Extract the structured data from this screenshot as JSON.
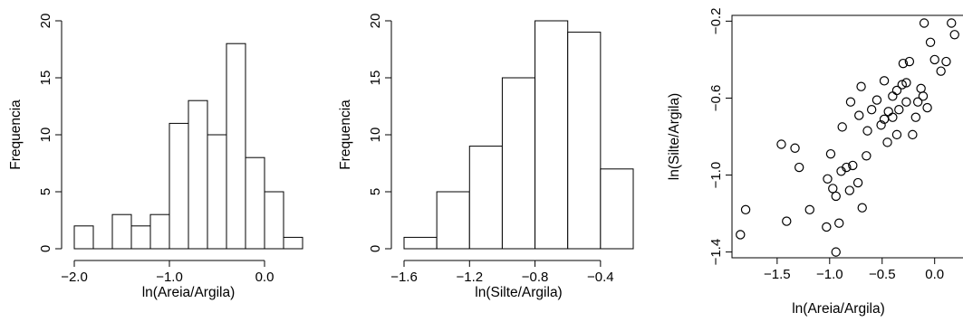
{
  "chart_data": [
    {
      "type": "histogram",
      "title": "",
      "xlabel": "ln(Areia/Argila)",
      "ylabel": "Frequencia",
      "xlim": [
        -2.0,
        0.4
      ],
      "ylim": [
        0,
        20
      ],
      "bin_width": 0.2,
      "bins": [
        {
          "x0": -2.0,
          "x1": -1.8,
          "count": 2
        },
        {
          "x0": -1.8,
          "x1": -1.6,
          "count": 0
        },
        {
          "x0": -1.6,
          "x1": -1.4,
          "count": 3
        },
        {
          "x0": -1.4,
          "x1": -1.2,
          "count": 2
        },
        {
          "x0": -1.2,
          "x1": -1.0,
          "count": 3
        },
        {
          "x0": -1.0,
          "x1": -0.8,
          "count": 11
        },
        {
          "x0": -0.8,
          "x1": -0.6,
          "count": 13
        },
        {
          "x0": -0.6,
          "x1": -0.4,
          "count": 10
        },
        {
          "x0": -0.4,
          "x1": -0.2,
          "count": 18
        },
        {
          "x0": -0.2,
          "x1": 0.0,
          "count": 8
        },
        {
          "x0": 0.0,
          "x1": 0.2,
          "count": 5
        },
        {
          "x0": 0.2,
          "x1": 0.4,
          "count": 1
        }
      ],
      "x_ticks": [
        {
          "value": -2.0,
          "label": "−2.0"
        },
        {
          "value": -1.0,
          "label": "−1.0"
        },
        {
          "value": 0.0,
          "label": "0.0"
        }
      ],
      "y_ticks": [
        {
          "value": 0,
          "label": "0"
        },
        {
          "value": 5,
          "label": "5"
        },
        {
          "value": 10,
          "label": "10"
        },
        {
          "value": 15,
          "label": "15"
        },
        {
          "value": 20,
          "label": "20"
        }
      ]
    },
    {
      "type": "histogram",
      "title": "",
      "xlabel": "ln(Silte/Argila)",
      "ylabel": "Frequencia",
      "xlim": [
        -1.6,
        -0.2
      ],
      "ylim": [
        0,
        20
      ],
      "bin_width": 0.2,
      "bins": [
        {
          "x0": -1.6,
          "x1": -1.4,
          "count": 1
        },
        {
          "x0": -1.4,
          "x1": -1.2,
          "count": 5
        },
        {
          "x0": -1.2,
          "x1": -1.0,
          "count": 9
        },
        {
          "x0": -1.0,
          "x1": -0.8,
          "count": 15
        },
        {
          "x0": -0.8,
          "x1": -0.6,
          "count": 20
        },
        {
          "x0": -0.6,
          "x1": -0.4,
          "count": 19
        },
        {
          "x0": -0.4,
          "x1": -0.2,
          "count": 7
        }
      ],
      "x_ticks": [
        {
          "value": -1.6,
          "label": "−1.6"
        },
        {
          "value": -1.2,
          "label": "−1.2"
        },
        {
          "value": -0.8,
          "label": "−0.8"
        },
        {
          "value": -0.4,
          "label": "−0.4"
        }
      ],
      "y_ticks": [
        {
          "value": 0,
          "label": "0"
        },
        {
          "value": 5,
          "label": "5"
        },
        {
          "value": 10,
          "label": "10"
        },
        {
          "value": 15,
          "label": "15"
        },
        {
          "value": 20,
          "label": "20"
        }
      ]
    },
    {
      "type": "scatter",
      "title": "",
      "xlabel": "ln(Areia/Argila)",
      "ylabel": "ln(Silte/Argila)",
      "xlim": [
        -1.93,
        0.27
      ],
      "ylim": [
        -1.43,
        -0.17
      ],
      "grid": false,
      "marker": "open-circle",
      "x_ticks": [
        {
          "value": -1.5,
          "label": "−1.5"
        },
        {
          "value": -1.0,
          "label": "−1.0"
        },
        {
          "value": -0.5,
          "label": "−0.5"
        },
        {
          "value": 0.0,
          "label": "0.0"
        }
      ],
      "y_ticks": [
        {
          "value": -1.4,
          "label": "−1.4"
        },
        {
          "value": -1.0,
          "label": "−1.0"
        },
        {
          "value": -0.6,
          "label": "−0.6"
        },
        {
          "value": -0.2,
          "label": "−0.2"
        }
      ],
      "points": [
        {
          "x": -1.85,
          "y": -1.31
        },
        {
          "x": -1.8,
          "y": -1.18
        },
        {
          "x": -1.46,
          "y": -0.84
        },
        {
          "x": -1.41,
          "y": -1.24
        },
        {
          "x": -1.33,
          "y": -0.86
        },
        {
          "x": -1.29,
          "y": -0.96
        },
        {
          "x": -1.19,
          "y": -1.18
        },
        {
          "x": -1.03,
          "y": -1.27
        },
        {
          "x": -1.02,
          "y": -1.02
        },
        {
          "x": -0.99,
          "y": -0.89
        },
        {
          "x": -0.97,
          "y": -1.07
        },
        {
          "x": -0.94,
          "y": -1.11
        },
        {
          "x": -0.94,
          "y": -1.4
        },
        {
          "x": -0.91,
          "y": -1.25
        },
        {
          "x": -0.89,
          "y": -0.98
        },
        {
          "x": -0.88,
          "y": -0.75
        },
        {
          "x": -0.84,
          "y": -0.96
        },
        {
          "x": -0.81,
          "y": -1.08
        },
        {
          "x": -0.8,
          "y": -0.62
        },
        {
          "x": -0.78,
          "y": -0.95
        },
        {
          "x": -0.73,
          "y": -1.04
        },
        {
          "x": -0.72,
          "y": -0.69
        },
        {
          "x": -0.7,
          "y": -0.54
        },
        {
          "x": -0.69,
          "y": -1.17
        },
        {
          "x": -0.65,
          "y": -0.9
        },
        {
          "x": -0.64,
          "y": -0.77
        },
        {
          "x": -0.6,
          "y": -0.66
        },
        {
          "x": -0.55,
          "y": -0.61
        },
        {
          "x": -0.51,
          "y": -0.74
        },
        {
          "x": -0.48,
          "y": -0.71
        },
        {
          "x": -0.48,
          "y": -0.51
        },
        {
          "x": -0.45,
          "y": -0.83
        },
        {
          "x": -0.44,
          "y": -0.67
        },
        {
          "x": -0.4,
          "y": -0.59
        },
        {
          "x": -0.4,
          "y": -0.7
        },
        {
          "x": -0.36,
          "y": -0.56
        },
        {
          "x": -0.36,
          "y": -0.79
        },
        {
          "x": -0.34,
          "y": -0.66
        },
        {
          "x": -0.31,
          "y": -0.53
        },
        {
          "x": -0.3,
          "y": -0.42
        },
        {
          "x": -0.27,
          "y": -0.52
        },
        {
          "x": -0.27,
          "y": -0.62
        },
        {
          "x": -0.24,
          "y": -0.41
        },
        {
          "x": -0.21,
          "y": -0.79
        },
        {
          "x": -0.18,
          "y": -0.7
        },
        {
          "x": -0.16,
          "y": -0.62
        },
        {
          "x": -0.13,
          "y": -0.55
        },
        {
          "x": -0.11,
          "y": -0.59
        },
        {
          "x": -0.1,
          "y": -0.21
        },
        {
          "x": -0.07,
          "y": -0.65
        },
        {
          "x": -0.04,
          "y": -0.31
        },
        {
          "x": 0.0,
          "y": -0.4
        },
        {
          "x": 0.06,
          "y": -0.46
        },
        {
          "x": 0.11,
          "y": -0.41
        },
        {
          "x": 0.16,
          "y": -0.21
        },
        {
          "x": 0.19,
          "y": -0.27
        }
      ]
    }
  ]
}
